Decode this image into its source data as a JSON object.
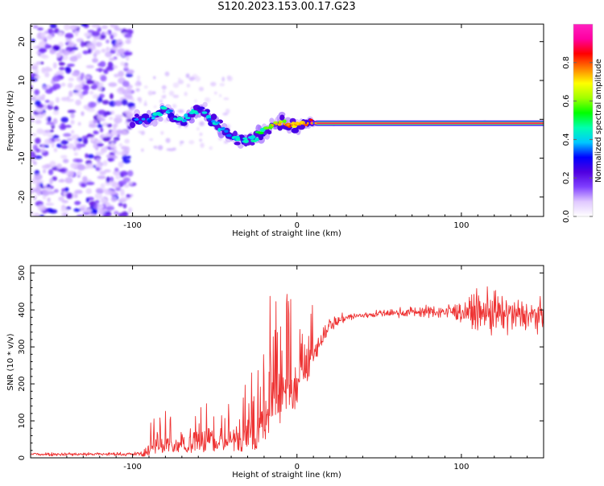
{
  "title": "S120.2023.153.00.17.G23",
  "chart_data": [
    {
      "type": "heatmap",
      "xlabel": "Height of straight line (km)",
      "ylabel": "Frequency (Hz)",
      "xlim": [
        -162,
        150
      ],
      "ylim": [
        -25,
        24.5
      ],
      "xticks": [
        -100,
        0,
        100
      ],
      "yticks": [
        -20,
        -10,
        0,
        10,
        20
      ],
      "colorbar": {
        "label": "Normalized spectral amplitude",
        "range": [
          0,
          1
        ],
        "ticks": [
          0.0,
          0.2,
          0.4,
          0.6,
          0.8
        ],
        "tick_labels": [
          "0.0",
          "0.2",
          "0.4",
          "0.6",
          "0.8"
        ],
        "stops": [
          "#ffffff",
          "#e0c8ff",
          "#8040ff",
          "#5000e0",
          "#0000ff",
          "#00c8ff",
          "#00ffb0",
          "#00ff00",
          "#a0ff00",
          "#ffff00",
          "#ff8000",
          "#ff0000",
          "#ff00a0",
          "#ff20c0"
        ]
      },
      "frequency_track": {
        "height_km": [
          -100,
          -95,
          -90,
          -85,
          -80,
          -75,
          -70,
          -65,
          -60,
          -55,
          -50,
          -45,
          -40,
          -35,
          -30,
          -25,
          -20,
          -15,
          -10,
          -5,
          0,
          5,
          10,
          20,
          40,
          60,
          80,
          100,
          120,
          150
        ],
        "frequency_hz": [
          -1,
          0,
          -0.5,
          1.5,
          2.5,
          1,
          -0.5,
          1,
          2.5,
          1.5,
          -1,
          -2.5,
          -4.5,
          -5,
          -5.5,
          -4.5,
          -3,
          -1.5,
          -1,
          -1.5,
          -1.5,
          -1,
          -1,
          -1,
          -1,
          -1,
          -1,
          -1,
          -1,
          -1
        ],
        "peak_amplitude": [
          0.3,
          0.35,
          0.35,
          0.4,
          0.4,
          0.38,
          0.4,
          0.38,
          0.4,
          0.4,
          0.38,
          0.38,
          0.4,
          0.4,
          0.42,
          0.45,
          0.5,
          0.58,
          0.65,
          0.72,
          0.78,
          0.82,
          0.88,
          0.92,
          0.95,
          0.95,
          0.95,
          0.95,
          0.95,
          0.95
        ]
      },
      "noise_region_km": [
        -162,
        -100
      ]
    },
    {
      "type": "line",
      "xlabel": "Height of straight line (km)",
      "ylabel": "SNR (10 * v/v)",
      "xlim": [
        -162,
        150
      ],
      "ylim": [
        0,
        520
      ],
      "xticks": [
        -100,
        0,
        100
      ],
      "yticks": [
        0,
        100,
        200,
        300,
        400,
        500
      ],
      "series": [
        {
          "color": "#ee3333",
          "envelope": {
            "height_km": [
              -162,
              -140,
              -120,
              -100,
              -93,
              -90,
              -85,
              -80,
              -75,
              -70,
              -60,
              -50,
              -40,
              -30,
              -25,
              -20,
              -15,
              -10,
              -5,
              0,
              5,
              10,
              15,
              20,
              30,
              40,
              50,
              60,
              70,
              80,
              90,
              100,
              110,
              120,
              130,
              140,
              150
            ],
            "snr_mean": [
              10,
              10,
              10,
              10,
              12,
              30,
              45,
              50,
              50,
              48,
              55,
              60,
              70,
              90,
              130,
              160,
              180,
              200,
              210,
              230,
              260,
              300,
              330,
              360,
              380,
              385,
              390,
              392,
              395,
              395,
              395,
              395,
              395,
              390,
              385,
              385,
              385
            ],
            "snr_spread": [
              6,
              6,
              6,
              6,
              8,
              25,
              35,
              35,
              35,
              35,
              40,
              45,
              55,
              80,
              110,
              120,
              120,
              110,
              100,
              90,
              70,
              50,
              35,
              25,
              15,
              12,
              12,
              14,
              18,
              20,
              25,
              35,
              60,
              80,
              60,
              50,
              45
            ]
          }
        }
      ]
    }
  ]
}
